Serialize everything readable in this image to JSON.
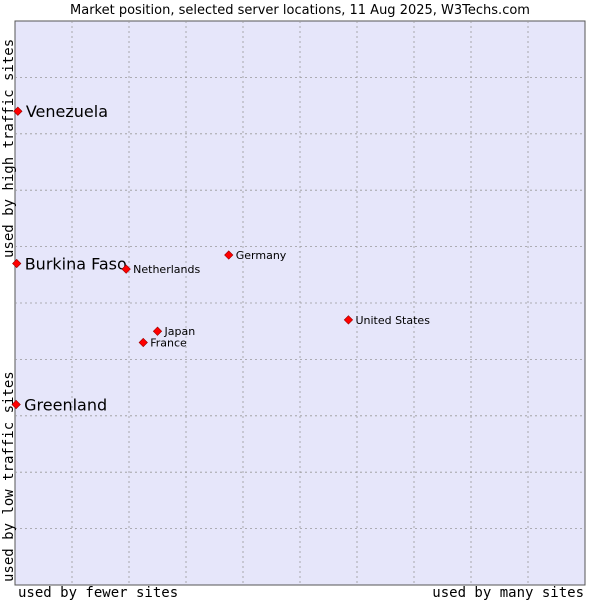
{
  "chart_data": {
    "type": "scatter",
    "title": "Market position, selected server locations, 11 Aug 2025, W3Techs.com",
    "xlabel_left": "used by fewer sites",
    "xlabel_right": "used by many sites",
    "ylabel_bottom": "used by low traffic sites",
    "ylabel_top": "used by high traffic sites",
    "xlim": [
      0,
      100
    ],
    "ylim": [
      0,
      100
    ],
    "grid": true,
    "points": [
      {
        "label": "Venezuela",
        "x": 0.5,
        "y": 84,
        "emphasis": true
      },
      {
        "label": "Burkina Faso",
        "x": 0.3,
        "y": 57,
        "emphasis": true
      },
      {
        "label": "Greenland",
        "x": 0.2,
        "y": 32,
        "emphasis": true
      },
      {
        "label": "Germany",
        "x": 37.5,
        "y": 58.5,
        "emphasis": false
      },
      {
        "label": "Netherlands",
        "x": 19.5,
        "y": 56,
        "emphasis": false
      },
      {
        "label": "United States",
        "x": 58.5,
        "y": 47,
        "emphasis": false
      },
      {
        "label": "Japan",
        "x": 25,
        "y": 45,
        "emphasis": false
      },
      {
        "label": "France",
        "x": 22.5,
        "y": 43,
        "emphasis": false
      }
    ]
  }
}
